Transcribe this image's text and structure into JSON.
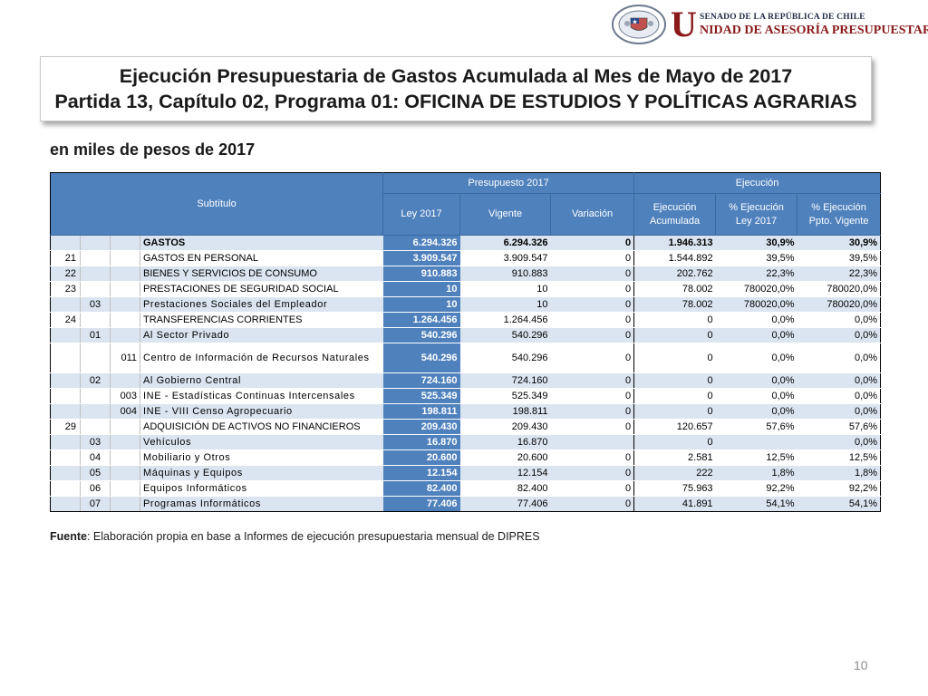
{
  "header": {
    "logo_top": "SENADO DE LA REPÚBLICA DE CHILE",
    "logo_u": "U",
    "logo_bottom": "NIDAD DE ASESORÍA PRESUPUESTARIA",
    "seal_text_top": "REPÚBLICA DE CHILE",
    "seal_text_bottom": "SENADO"
  },
  "title": {
    "line1": "Ejecución Presupuestaria de Gastos Acumulada al Mes de Mayo de 2017",
    "line2": "Partida 13, Capítulo 02, Programa 01: OFICINA DE ESTUDIOS Y POLÍTICAS AGRARIAS"
  },
  "subtitle": "en miles de pesos de 2017",
  "table": {
    "headers": {
      "subtitulo": "Subtítulo",
      "presupuesto": "Presupuesto 2017",
      "ejecucion": "Ejecución",
      "ley": "Ley 2017",
      "vigente": "Vigente",
      "variacion": "Variación",
      "ejec_acum_1": "Ejecución",
      "ejec_acum_2": "Acumulada",
      "pct_ley_1": "% Ejecución",
      "pct_ley_2": "Ley 2017",
      "pct_vig_1": "% Ejecución",
      "pct_vig_2": "Ppto. Vigente"
    },
    "rows": [
      {
        "sub": "",
        "item": "",
        "asig": "",
        "name": "GASTOS",
        "ley": "6.294.326",
        "vigente": "6.294.326",
        "variacion": "0",
        "ejec": "1.946.313",
        "pct_ley": "30,9%",
        "pct_vig": "30,9%"
      },
      {
        "sub": "21",
        "item": "",
        "asig": "",
        "name": "GASTOS EN PERSONAL",
        "ley": "3.909.547",
        "vigente": "3.909.547",
        "variacion": "0",
        "ejec": "1.544.892",
        "pct_ley": "39,5%",
        "pct_vig": "39,5%"
      },
      {
        "sub": "22",
        "item": "",
        "asig": "",
        "name": "BIENES Y SERVICIOS DE CONSUMO",
        "ley": "910.883",
        "vigente": "910.883",
        "variacion": "0",
        "ejec": "202.762",
        "pct_ley": "22,3%",
        "pct_vig": "22,3%"
      },
      {
        "sub": "23",
        "item": "",
        "asig": "",
        "name": "PRESTACIONES DE SEGURIDAD SOCIAL",
        "ley": "10",
        "vigente": "10",
        "variacion": "0",
        "ejec": "78.002",
        "pct_ley": "780020,0%",
        "pct_vig": "780020,0%"
      },
      {
        "sub": "",
        "item": "03",
        "asig": "",
        "name": "Prestaciones Sociales del Empleador",
        "ley": "10",
        "vigente": "10",
        "variacion": "0",
        "ejec": "78.002",
        "pct_ley": "780020,0%",
        "pct_vig": "780020,0%"
      },
      {
        "sub": "24",
        "item": "",
        "asig": "",
        "name": "TRANSFERENCIAS CORRIENTES",
        "ley": "1.264.456",
        "vigente": "1.264.456",
        "variacion": "0",
        "ejec": "0",
        "pct_ley": "0,0%",
        "pct_vig": "0,0%"
      },
      {
        "sub": "",
        "item": "01",
        "asig": "",
        "name": "Al Sector Privado",
        "ley": "540.296",
        "vigente": "540.296",
        "variacion": "0",
        "ejec": "0",
        "pct_ley": "0,0%",
        "pct_vig": "0,0%"
      },
      {
        "sub": "",
        "item": "",
        "asig": "011",
        "name": "Centro de Información de Recursos Naturales",
        "ley": "540.296",
        "vigente": "540.296",
        "variacion": "0",
        "ejec": "0",
        "pct_ley": "0,0%",
        "pct_vig": "0,0%"
      },
      {
        "sub": "",
        "item": "02",
        "asig": "",
        "name": "Al Gobierno Central",
        "ley": "724.160",
        "vigente": "724.160",
        "variacion": "0",
        "ejec": "0",
        "pct_ley": "0,0%",
        "pct_vig": "0,0%"
      },
      {
        "sub": "",
        "item": "",
        "asig": "003",
        "name": "INE - Estadísticas Continuas Intercensales",
        "ley": "525.349",
        "vigente": "525.349",
        "variacion": "0",
        "ejec": "0",
        "pct_ley": "0,0%",
        "pct_vig": "0,0%"
      },
      {
        "sub": "",
        "item": "",
        "asig": "004",
        "name": "INE - VIII Censo Agropecuario",
        "ley": "198.811",
        "vigente": "198.811",
        "variacion": "0",
        "ejec": "0",
        "pct_ley": "0,0%",
        "pct_vig": "0,0%"
      },
      {
        "sub": "29",
        "item": "",
        "asig": "",
        "name": "ADQUISICIÓN DE ACTIVOS NO FINANCIEROS",
        "ley": "209.430",
        "vigente": "209.430",
        "variacion": "0",
        "ejec": "120.657",
        "pct_ley": "57,6%",
        "pct_vig": "57,6%"
      },
      {
        "sub": "",
        "item": "03",
        "asig": "",
        "name": "Vehículos",
        "ley": "16.870",
        "vigente": "16.870",
        "variacion": "",
        "ejec": "0",
        "pct_ley": "",
        "pct_vig": "0,0%"
      },
      {
        "sub": "",
        "item": "04",
        "asig": "",
        "name": "Mobiliario y Otros",
        "ley": "20.600",
        "vigente": "20.600",
        "variacion": "0",
        "ejec": "2.581",
        "pct_ley": "12,5%",
        "pct_vig": "12,5%"
      },
      {
        "sub": "",
        "item": "05",
        "asig": "",
        "name": "Máquinas y Equipos",
        "ley": "12.154",
        "vigente": "12.154",
        "variacion": "0",
        "ejec": "222",
        "pct_ley": "1,8%",
        "pct_vig": "1,8%"
      },
      {
        "sub": "",
        "item": "06",
        "asig": "",
        "name": "Equipos Informáticos",
        "ley": "82.400",
        "vigente": "82.400",
        "variacion": "0",
        "ejec": "75.963",
        "pct_ley": "92,2%",
        "pct_vig": "92,2%"
      },
      {
        "sub": "",
        "item": "07",
        "asig": "",
        "name": "Programas Informáticos",
        "ley": "77.406",
        "vigente": "77.406",
        "variacion": "0",
        "ejec": "41.891",
        "pct_ley": "54,1%",
        "pct_vig": "54,1%"
      }
    ]
  },
  "source": {
    "label": "Fuente",
    "text": ": Elaboración propia en base  a Informes de ejecución presupuestaria mensual de DIPRES"
  },
  "page_number": "10"
}
